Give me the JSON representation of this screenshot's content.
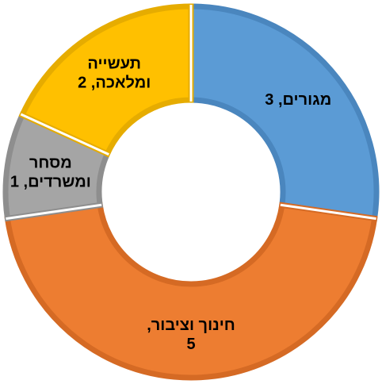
{
  "chart_data": {
    "type": "pie",
    "variant": "donut",
    "title": "",
    "start_angle_deg": 0,
    "direction": "clockwise",
    "slices": [
      {
        "label": "מגורים",
        "value": 3,
        "display": "מגורים, 3",
        "color": "#5B9BD5",
        "border": "#4A86BE"
      },
      {
        "label": "חינוך וציבור",
        "value": 5,
        "display": "חינוך וציבור, 5",
        "color": "#ED7D31",
        "border": "#D56A24"
      },
      {
        "label": "מסחר ומשרדים",
        "value": 1,
        "display": "מסחר ומשרדים, 1",
        "color": "#A5A5A5",
        "border": "#8E8E8E"
      },
      {
        "label": "תעשייה ומלאכה",
        "value": 2,
        "display": "תעשייה ומלאכה, 2",
        "color": "#FFC000",
        "border": "#E6AC00"
      }
    ],
    "label_lines": [
      [
        "מגורים, 3"
      ],
      [
        "חינוך וציבור,",
        "5"
      ],
      [
        "מסחר",
        "ומשרדים, 1"
      ],
      [
        "תעשייה",
        "ומלאכה, 2"
      ]
    ],
    "legend": "none",
    "data_labels": "inside"
  }
}
